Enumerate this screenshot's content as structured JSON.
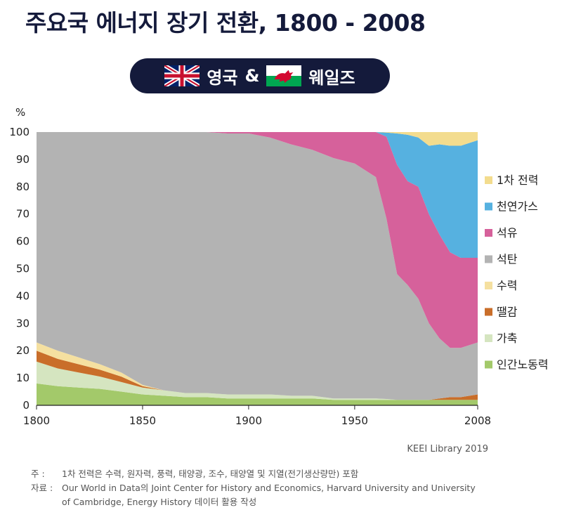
{
  "title": "주요국 에너지 장기 전환, 1800 - 2008",
  "badge": {
    "left_label": "영국",
    "amp": "&",
    "right_label": "웨일즈",
    "left_flag": "uk-flag",
    "right_flag": "wales-flag"
  },
  "credit": "KEEI Library 2019",
  "notes": {
    "note_label": "주 :",
    "note_text": "1차 전력은 수력, 원자력, 풍력, 태양광, 조수, 태양열 및 지열(전기생산량만) 포함",
    "source_label": "자료 :",
    "source_text_1": "Our World in Data의 Joint Center for History and Economics, Harvard University and University",
    "source_text_2": "of Cambridge, Energy History 데이터 활용 작성"
  },
  "chart_data": {
    "type": "area",
    "stacked": true,
    "ylabel": "%",
    "ylim": [
      0,
      100
    ],
    "yticks": [
      0,
      10,
      20,
      30,
      40,
      50,
      60,
      70,
      80,
      90,
      100
    ],
    "xlim": [
      1800,
      2008
    ],
    "xticks": [
      1800,
      1850,
      1900,
      1950,
      2008
    ],
    "grid": false,
    "legend_position": "right",
    "x": [
      1800,
      1810,
      1820,
      1830,
      1840,
      1850,
      1860,
      1870,
      1880,
      1890,
      1900,
      1910,
      1920,
      1930,
      1940,
      1950,
      1960,
      1965,
      1970,
      1975,
      1980,
      1985,
      1990,
      1995,
      2000,
      2008
    ],
    "series": [
      {
        "name": "인간노동력",
        "color": "#a3c96a",
        "values": [
          8,
          7,
          6.5,
          6,
          5,
          4,
          3.5,
          3,
          3,
          2.5,
          2.5,
          2.5,
          2.5,
          2.5,
          2,
          2,
          2,
          2,
          2,
          2,
          2,
          2,
          2,
          2,
          2,
          2
        ]
      },
      {
        "name": "가축",
        "color": "#d5e5c0",
        "values": [
          8,
          6.5,
          5.5,
          4.5,
          3.5,
          2.5,
          2,
          1.5,
          1.5,
          1.5,
          1.5,
          1.5,
          1,
          1,
          0.5,
          0.5,
          0.5,
          0.3,
          0,
          0,
          0,
          0,
          0,
          0,
          0,
          0
        ]
      },
      {
        "name": "땔감",
        "color": "#c96e2a",
        "values": [
          4,
          3.5,
          3,
          2.5,
          2,
          0.5,
          0,
          0,
          0,
          0,
          0,
          0,
          0,
          0,
          0,
          0,
          0,
          0,
          0,
          0,
          0,
          0,
          0.5,
          1,
          1,
          2
        ]
      },
      {
        "name": "수력",
        "color": "#f5e0a0",
        "values": [
          3,
          3,
          2.5,
          2,
          1.5,
          0.5,
          0,
          0,
          0,
          0,
          0,
          0,
          0,
          0,
          0,
          0,
          0,
          0,
          0,
          0,
          0,
          0,
          0,
          0,
          0,
          0
        ]
      },
      {
        "name": "석탄",
        "color": "#b3b3b3",
        "values": [
          77,
          80,
          82.5,
          85,
          88,
          92.5,
          94.5,
          95.5,
          95.5,
          95.5,
          95.5,
          94,
          92,
          90,
          88,
          86,
          81,
          66,
          46,
          42,
          37,
          28,
          22,
          18,
          18,
          19
        ]
      },
      {
        "name": "석유",
        "color": "#d6619b",
        "values": [
          0,
          0,
          0,
          0,
          0,
          0,
          0,
          0,
          0,
          0.5,
          0.5,
          2,
          4.5,
          6.5,
          9.5,
          11.5,
          16.5,
          30,
          40,
          38,
          41,
          40,
          38,
          35,
          33,
          31
        ]
      },
      {
        "name": "천연가스",
        "color": "#56b1e0",
        "values": [
          0,
          0,
          0,
          0,
          0,
          0,
          0,
          0,
          0,
          0,
          0,
          0,
          0,
          0,
          0,
          0,
          0,
          1.5,
          11.5,
          17,
          18,
          25,
          33,
          39,
          41,
          43
        ]
      },
      {
        "name": "1차 전력",
        "color": "#f3dc8e",
        "values": [
          0,
          0,
          0,
          0,
          0,
          0,
          0,
          0,
          0,
          0,
          0,
          0,
          0,
          0,
          0,
          0,
          0,
          0.2,
          0.5,
          1,
          2,
          5,
          4.5,
          5,
          5,
          3
        ]
      }
    ],
    "legend_order": [
      "1차 전력",
      "천연가스",
      "석유",
      "석탄",
      "수력",
      "땔감",
      "가축",
      "인간노동력"
    ]
  }
}
